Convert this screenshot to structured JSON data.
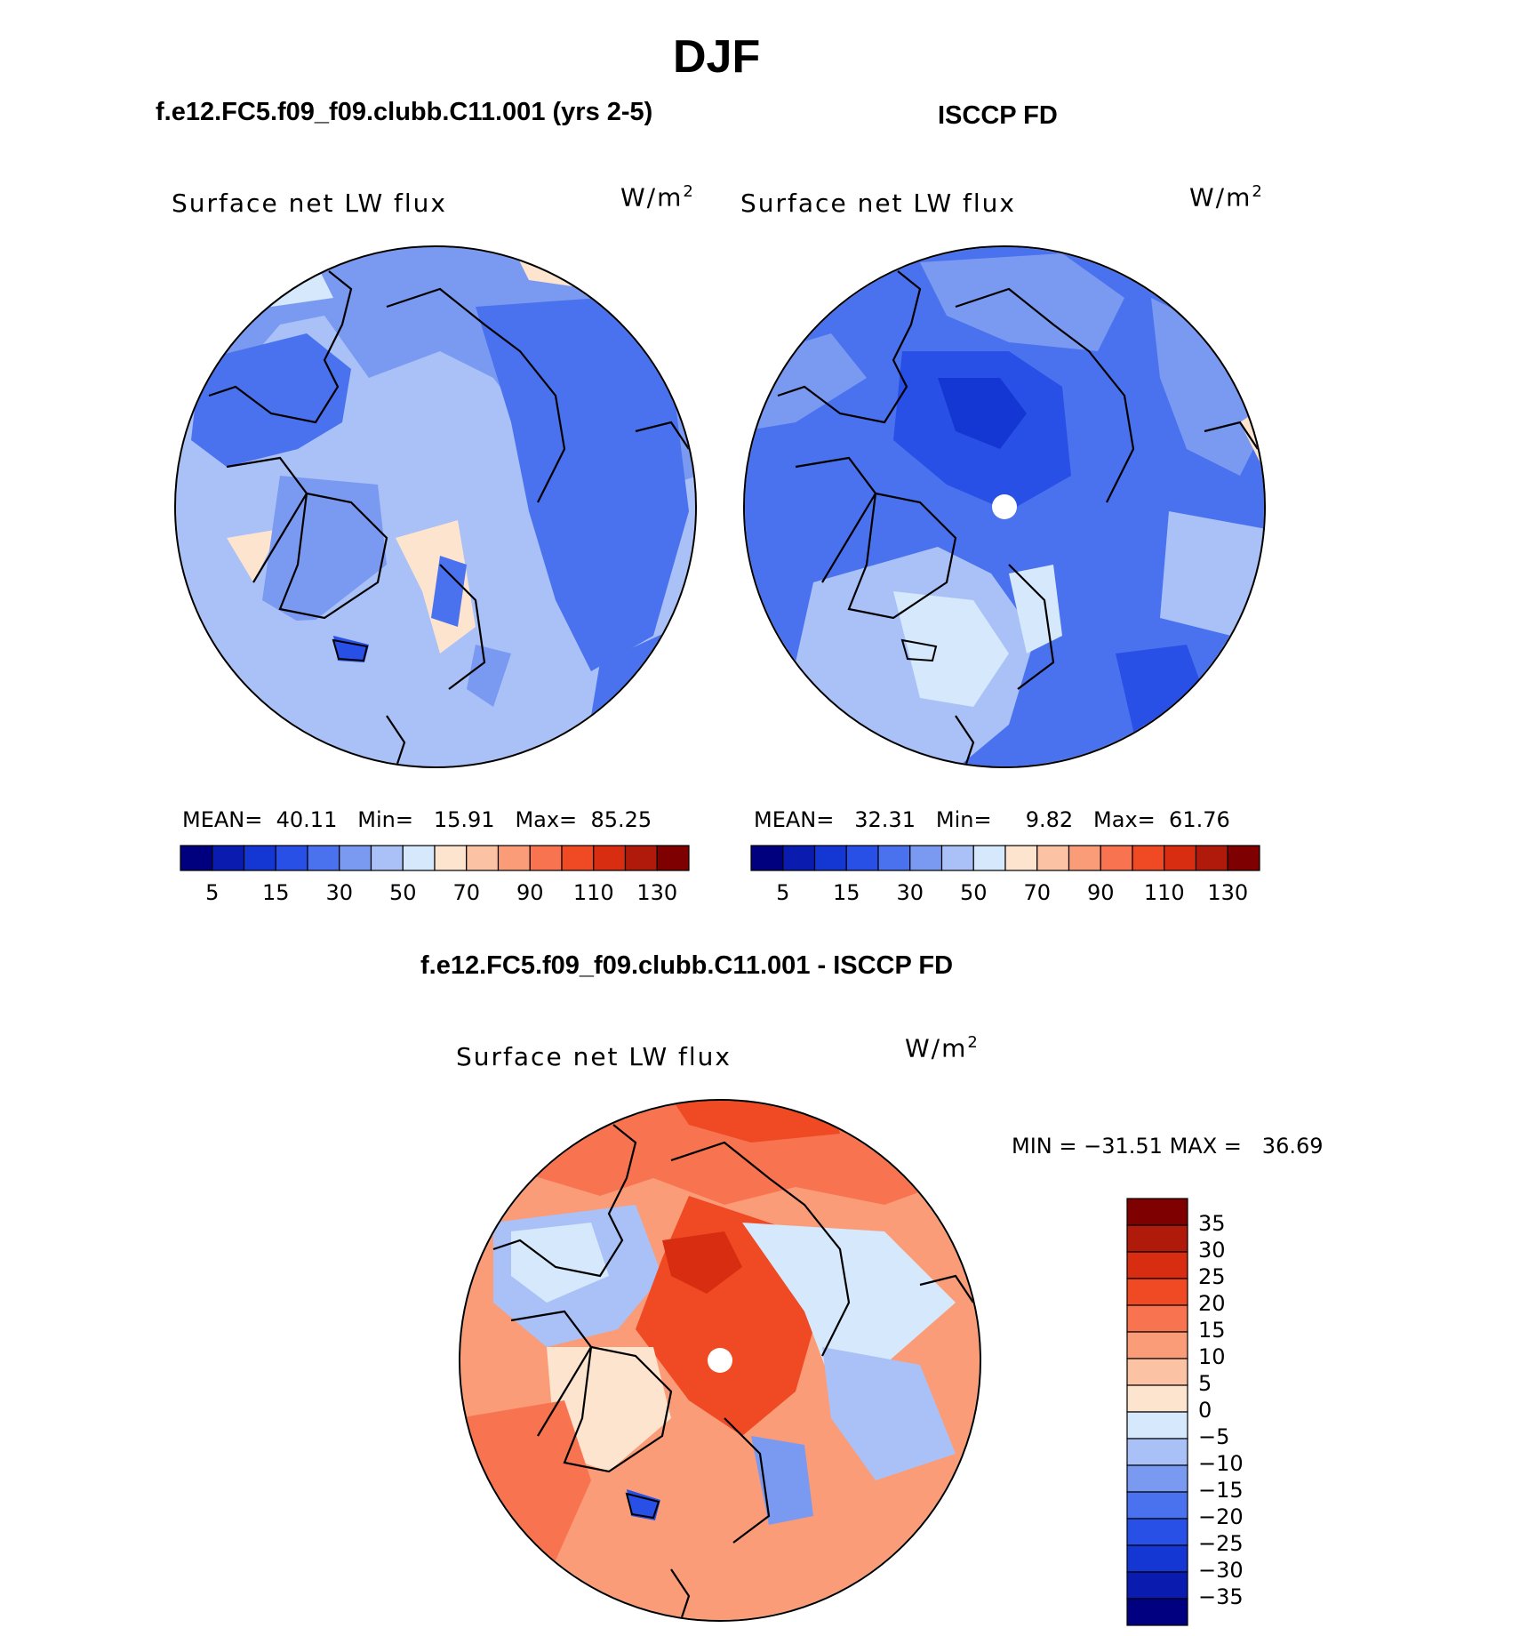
{
  "header": {
    "season": "DJF",
    "model_case": "f.e12.FC5.f09_f09.clubb.C11.001 (yrs 2-5)",
    "obs_case": "ISCCP FD",
    "diff_title": "f.e12.FC5.f09_f09.clubb.C11.001 - ISCCP FD"
  },
  "colors": {
    "abs_scale": [
      "#00007f",
      "#0a1cb0",
      "#1436d2",
      "#2850e6",
      "#4a72ee",
      "#7a9af2",
      "#a9c1f7",
      "#d6e8fb",
      "#fde4cf",
      "#fcc2a4",
      "#fb9c79",
      "#f87450",
      "#ef4a24",
      "#d92d12",
      "#b01a0a",
      "#7f0000"
    ],
    "diff_scale": [
      "#000080",
      "#0a1cb0",
      "#1436d2",
      "#2850e6",
      "#4a72ee",
      "#7a9af2",
      "#a9c1f7",
      "#d6e8fb",
      "#fde4cf",
      "#fcc2a4",
      "#fb9c79",
      "#f87450",
      "#ef4a24",
      "#d92d12",
      "#b01a0a",
      "#7f0000"
    ]
  },
  "panels": {
    "model": {
      "variable": "Surface net LW flux",
      "unit_base": "W/m",
      "unit_exp": "2",
      "mean_label": "MEAN=",
      "mean": "40.11",
      "min_label": "Min=",
      "min": "15.91",
      "max_label": "Max=",
      "max": "85.25",
      "colorbar_ticks": [
        "5",
        "15",
        "30",
        "50",
        "70",
        "90",
        "110",
        "130"
      ]
    },
    "obs": {
      "variable": "Surface net LW flux",
      "unit_base": "W/m",
      "unit_exp": "2",
      "mean_label": "MEAN=",
      "mean": "32.31",
      "min_label": "Min=",
      "min": "9.82",
      "max_label": "Max=",
      "max": "61.76",
      "colorbar_ticks": [
        "5",
        "15",
        "30",
        "50",
        "70",
        "90",
        "110",
        "130"
      ]
    },
    "diff": {
      "variable": "Surface net LW flux",
      "unit_base": "W/m",
      "unit_exp": "2",
      "min_label": "MIN =",
      "min": "−31.51",
      "max_label": "MAX =",
      "max": "36.69",
      "colorbar_ticks": [
        "35",
        "30",
        "25",
        "20",
        "15",
        "10",
        "5",
        "0",
        "−5",
        "−10",
        "−15",
        "−20",
        "−25",
        "−30",
        "−35"
      ]
    }
  },
  "chart_data": [
    {
      "type": "heatmap",
      "title": "f.e12.FC5.f09_f09.clubb.C11.001 (yrs 2-5)",
      "variable": "Surface net LW flux",
      "units": "W/m2",
      "projection": "north polar stereographic",
      "stats": {
        "mean": 40.11,
        "min": 15.91,
        "max": 85.25
      },
      "contour_levels": [
        5,
        10,
        15,
        20,
        30,
        40,
        50,
        60,
        70,
        80,
        90,
        100,
        110,
        120,
        130
      ]
    },
    {
      "type": "heatmap",
      "title": "ISCCP FD",
      "variable": "Surface net LW flux",
      "units": "W/m2",
      "projection": "north polar stereographic",
      "stats": {
        "mean": 32.31,
        "min": 9.82,
        "max": 61.76
      },
      "contour_levels": [
        5,
        10,
        15,
        20,
        30,
        40,
        50,
        60,
        70,
        80,
        90,
        100,
        110,
        120,
        130
      ]
    },
    {
      "type": "heatmap",
      "title": "f.e12.FC5.f09_f09.clubb.C11.001 - ISCCP FD",
      "variable": "Surface net LW flux",
      "units": "W/m2",
      "projection": "north polar stereographic",
      "stats": {
        "min": -31.51,
        "max": 36.69
      },
      "contour_levels": [
        -35,
        -30,
        -25,
        -20,
        -15,
        -10,
        -5,
        0,
        5,
        10,
        15,
        20,
        25,
        30,
        35
      ]
    }
  ]
}
